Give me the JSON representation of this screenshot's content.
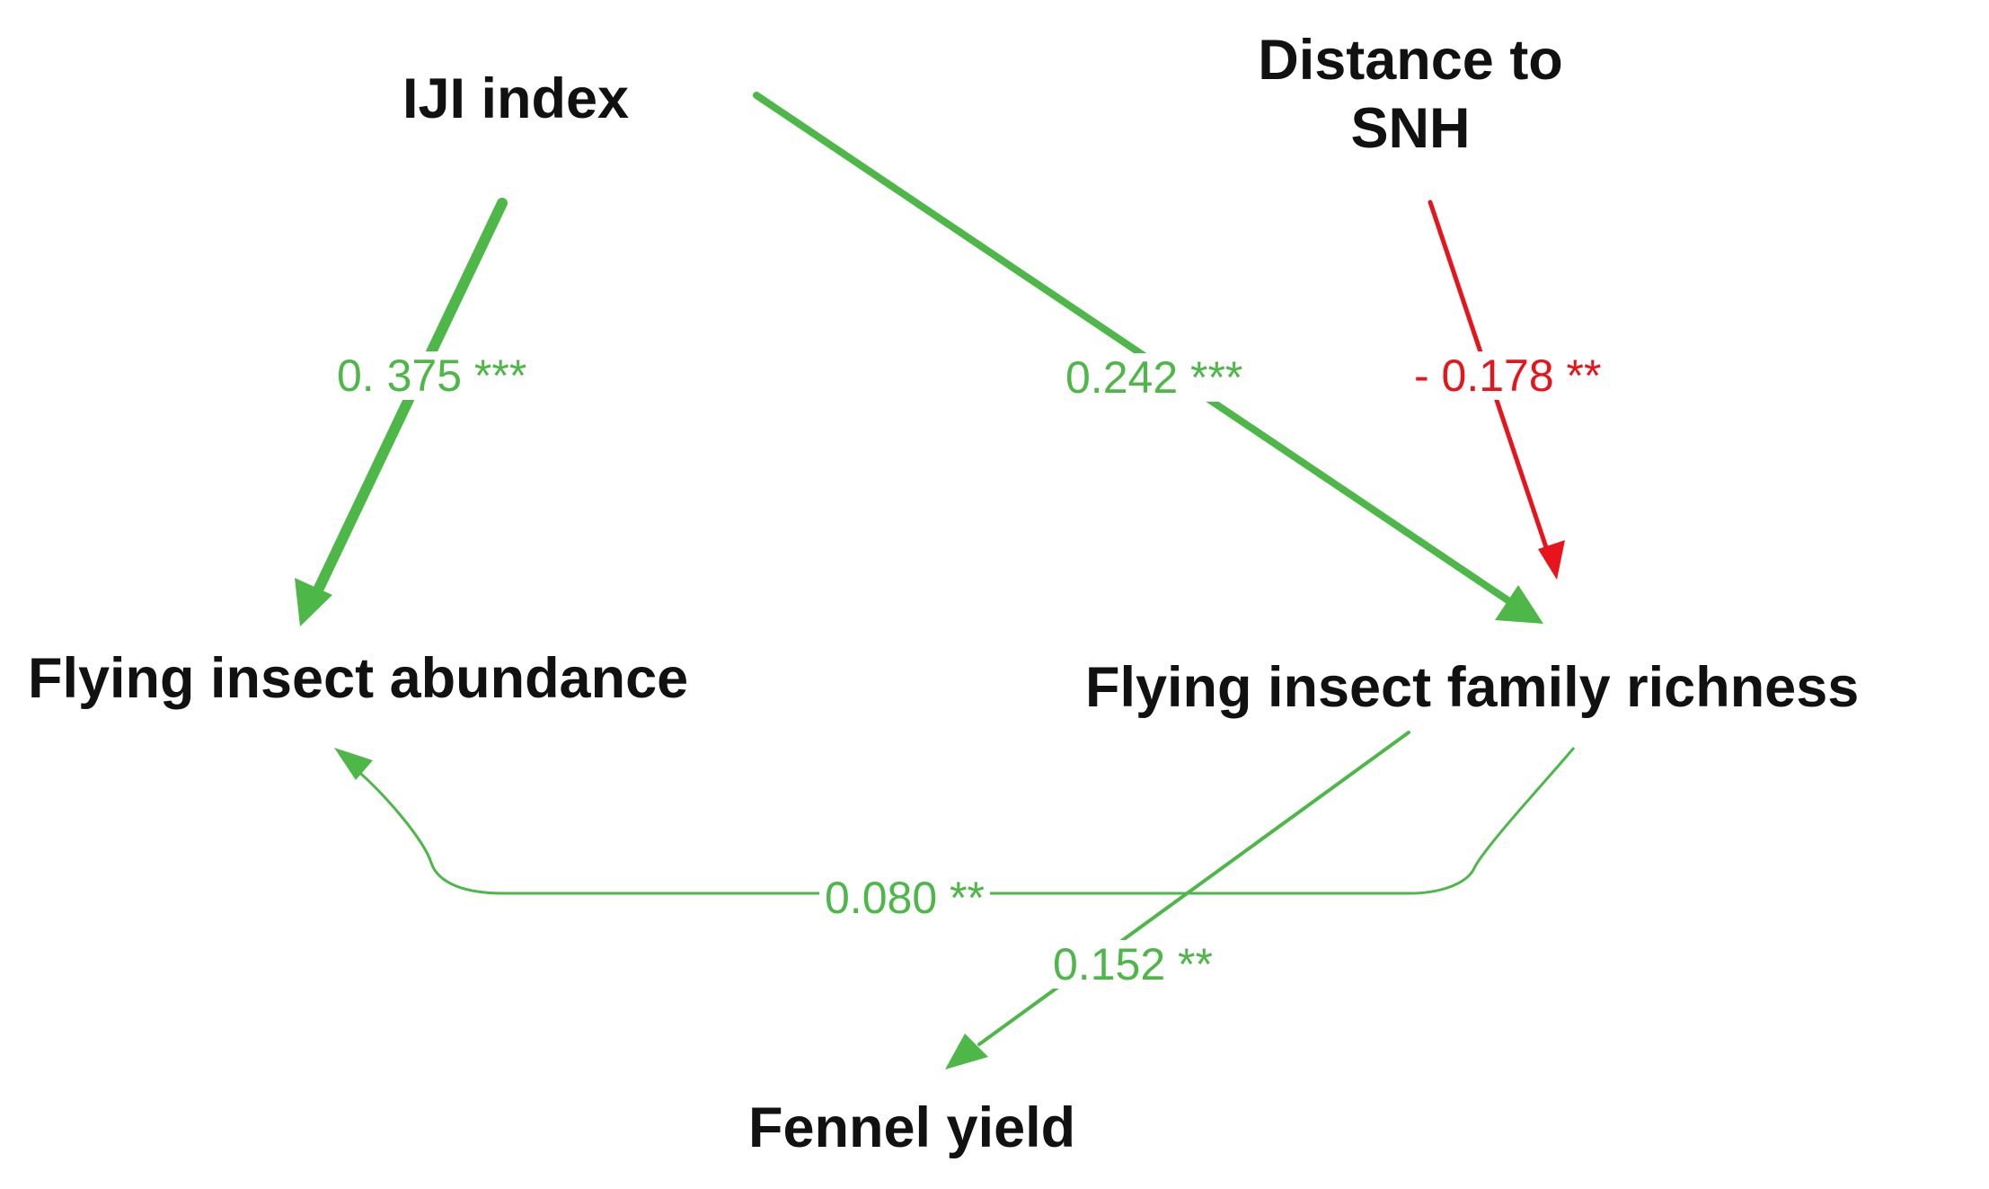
{
  "colors": {
    "positive": "#4db848",
    "negative": "#e8141b",
    "node_text": "#111111"
  },
  "nodes": {
    "iji": "IJI index",
    "distance_line1": "Distance to",
    "distance_line2": "SNH",
    "abundance": "Flying insect abundance",
    "richness": "Flying insect family richness",
    "fennel": "Fennel yield"
  },
  "paths": [
    {
      "from": "IJI index",
      "to": "Flying insect abundance",
      "label": "0. 375 ***",
      "sign": "positive"
    },
    {
      "from": "IJI index",
      "to": "Flying insect family richness",
      "label": "0.242 ***",
      "sign": "positive"
    },
    {
      "from": "Distance to SNH",
      "to": "Flying insect family richness",
      "label": "- 0.178 **",
      "sign": "negative"
    },
    {
      "from": "Flying insect family richness",
      "to": "Flying insect abundance",
      "label": "0.080 **",
      "sign": "positive"
    },
    {
      "from": "Flying insect family richness",
      "to": "Fennel yield",
      "label": "0.152 **",
      "sign": "positive"
    }
  ]
}
